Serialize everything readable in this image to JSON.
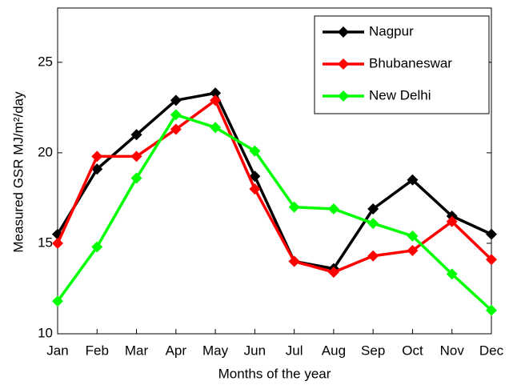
{
  "chart_data": {
    "type": "line",
    "x_label": "Months of the year",
    "y_label": "Measured GSR MJ/m²/day",
    "categories": [
      "Jan",
      "Feb",
      "Mar",
      "Apr",
      "May",
      "Jun",
      "Jul",
      "Aug",
      "Sep",
      "Oct",
      "Nov",
      "Dec"
    ],
    "series": [
      {
        "name": "Nagpur",
        "color": "#000000",
        "values": [
          15.5,
          19.1,
          21.0,
          22.9,
          23.3,
          18.7,
          14.0,
          13.6,
          16.9,
          18.5,
          16.5,
          15.5
        ]
      },
      {
        "name": "Bhubaneswar",
        "color": "#ff0000",
        "values": [
          15.0,
          19.8,
          19.8,
          21.3,
          22.9,
          18.0,
          14.0,
          13.4,
          14.3,
          14.6,
          16.2,
          14.1
        ]
      },
      {
        "name": "New Delhi",
        "color": "#00ff00",
        "values": [
          11.8,
          14.8,
          18.6,
          22.1,
          21.4,
          20.1,
          17.0,
          16.9,
          16.1,
          15.4,
          13.3,
          11.3
        ]
      }
    ],
    "ylim": [
      10,
      28
    ],
    "yticks": [
      10,
      15,
      20,
      25
    ],
    "grid": false,
    "legend": "upper right"
  }
}
